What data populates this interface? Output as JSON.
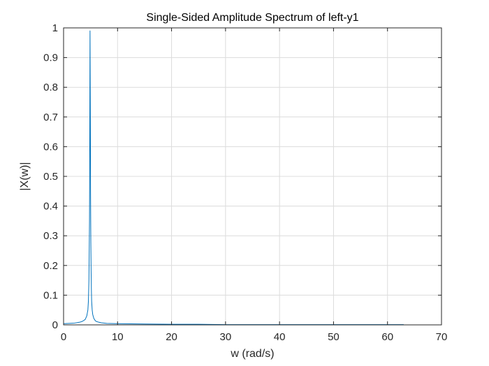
{
  "chart_data": {
    "type": "line",
    "title": "Single-Sided Amplitude Spectrum of left-y1",
    "xlabel": "w (rad/s)",
    "ylabel": "|X(w)|",
    "xlim": [
      0,
      70
    ],
    "ylim": [
      0,
      1
    ],
    "xticks": [
      0,
      10,
      20,
      30,
      40,
      50,
      60,
      70
    ],
    "yticks": [
      0,
      0.1,
      0.2,
      0.3,
      0.4,
      0.5,
      0.6,
      0.7,
      0.8,
      0.9,
      1
    ],
    "grid": true,
    "series": [
      {
        "color": "#0072BD",
        "x": [
          0,
          1,
          2,
          3,
          3.5,
          4,
          4.3,
          4.5,
          4.6,
          4.7,
          4.8,
          4.85,
          4.9,
          4.95,
          5.0,
          5.05,
          5.1,
          5.15,
          5.2,
          5.3,
          5.4,
          5.6,
          5.8,
          6.0,
          6.5,
          7,
          8,
          10,
          15,
          20,
          25,
          30,
          40,
          50,
          60,
          63
        ],
        "y": [
          0.004,
          0.005,
          0.006,
          0.009,
          0.012,
          0.018,
          0.03,
          0.05,
          0.08,
          0.15,
          0.35,
          0.6,
          0.99,
          0.75,
          0.45,
          0.28,
          0.18,
          0.12,
          0.08,
          0.05,
          0.035,
          0.022,
          0.016,
          0.012,
          0.009,
          0.007,
          0.005,
          0.004,
          0.003,
          0.002,
          0.002,
          0.001,
          0.001,
          0.001,
          0.001,
          0.001
        ]
      }
    ]
  }
}
